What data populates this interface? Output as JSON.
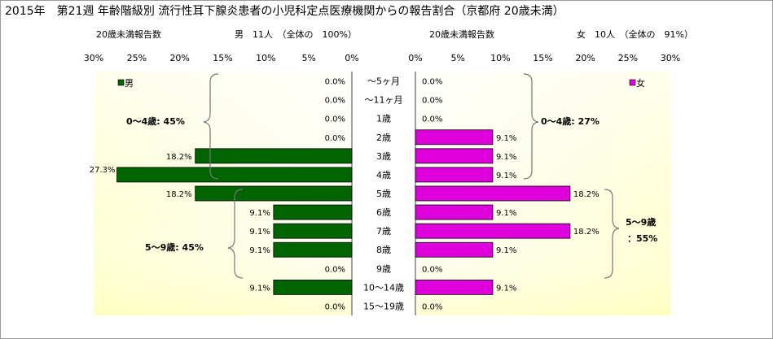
{
  "chart_data": {
    "type": "bar",
    "title": "2015年　第21週 年齢階級別 流行性耳下腺炎患者の小児科定点医療機関からの報告割合（京都府 20歳未満）",
    "categories": [
      "～5ヶ月",
      "～11ヶ月",
      "1歳",
      "2歳",
      "3歳",
      "4歳",
      "5歳",
      "6歳",
      "7歳",
      "8歳",
      "9歳",
      "10～14歳",
      "15～19歳"
    ],
    "xlim": [
      0,
      30
    ],
    "ticks": [
      "0%",
      "5%",
      "10%",
      "15%",
      "20%",
      "25%",
      "30%"
    ],
    "grid": false,
    "series": [
      {
        "name": "男",
        "color": "#006400",
        "values": [
          0.0,
          0.0,
          0.0,
          0.0,
          18.2,
          27.3,
          18.2,
          9.1,
          9.1,
          9.1,
          0.0,
          9.1,
          0.0
        ],
        "labels": [
          "0.0%",
          "0.0%",
          "0.0%",
          "0.0%",
          "18.2%",
          "27.3%",
          "18.2%",
          "9.1%",
          "9.1%",
          "9.1%",
          "0.0%",
          "9.1%",
          "0.0%"
        ],
        "header_left": "20歳未満報告数",
        "header_right": "男　11人　（全体の　100%）",
        "brackets": [
          "0～4歳: 45%",
          "5～9歳: 45%"
        ]
      },
      {
        "name": "女",
        "color": "#dd00dd",
        "values": [
          0.0,
          0.0,
          0.0,
          9.1,
          9.1,
          9.1,
          18.2,
          9.1,
          18.2,
          9.1,
          0.0,
          9.1,
          0.0
        ],
        "labels": [
          "0.0%",
          "0.0%",
          "0.0%",
          "9.1%",
          "9.1%",
          "9.1%",
          "18.2%",
          "9.1%",
          "18.2%",
          "9.1%",
          "0.0%",
          "9.1%",
          "0.0%"
        ],
        "header_left": "20歳未満報告数",
        "header_right": "女　10人　（全体の　91%）",
        "brackets": [
          "0～4歳: 27%",
          "5～9歳",
          "：55%"
        ]
      }
    ]
  }
}
